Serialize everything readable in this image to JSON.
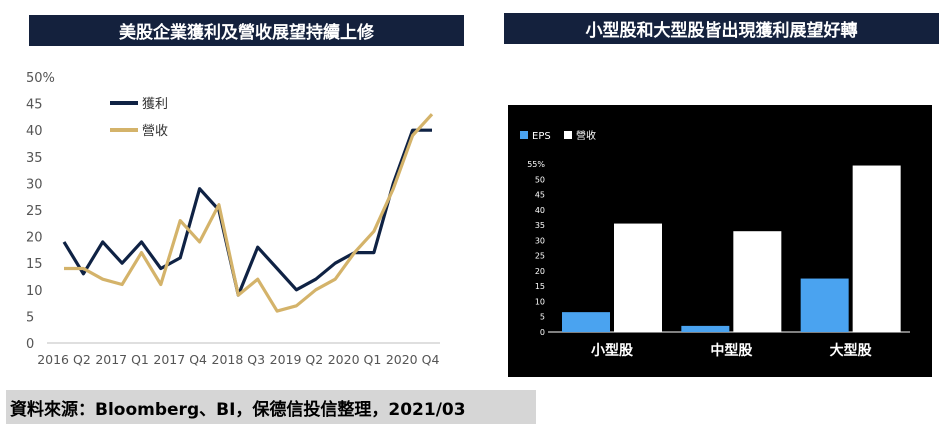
{
  "titles": {
    "left": "美股企業獲利及營收展望持續上修",
    "right": "小型股和大型股皆出現獲利展望好轉"
  },
  "source": "資料來源：Bloomberg、BI，保德信投信整理，2021/03",
  "chart_data": [
    {
      "type": "line",
      "ylim": [
        0,
        50
      ],
      "y_unit": "%",
      "yticks": [
        0,
        5,
        10,
        15,
        20,
        25,
        30,
        35,
        40,
        45,
        50
      ],
      "x_tick_labels": [
        "2016 Q2",
        "2017 Q1",
        "2017 Q4",
        "2018 Q3",
        "2019 Q2",
        "2020 Q1",
        "2020 Q4"
      ],
      "legend_position": "top-left",
      "series": [
        {
          "name": "獲利",
          "color": "#0f2244",
          "values": [
            19,
            13,
            19,
            15,
            19,
            14,
            16,
            29,
            25,
            9,
            18,
            14,
            10,
            12,
            15,
            17,
            17,
            30,
            40,
            40
          ]
        },
        {
          "name": "營收",
          "color": "#d4b36a",
          "values": [
            14,
            14,
            12,
            11,
            17,
            11,
            23,
            19,
            26,
            9,
            12,
            6,
            7,
            10,
            12,
            17,
            21,
            29,
            39,
            43
          ]
        }
      ]
    },
    {
      "type": "bar",
      "ylim": [
        0,
        55
      ],
      "y_unit": "%",
      "yticks": [
        0,
        5,
        10,
        15,
        20,
        25,
        30,
        35,
        40,
        45,
        50,
        55
      ],
      "categories": [
        "小型股",
        "中型股",
        "大型股"
      ],
      "legend_position": "top-left",
      "series": [
        {
          "name": "EPS",
          "color": "#4aa3f0",
          "values": [
            6.5,
            2,
            17.5
          ]
        },
        {
          "name": "營收",
          "color": "#ffffff",
          "values": [
            35.5,
            33,
            54.5
          ]
        }
      ]
    }
  ]
}
